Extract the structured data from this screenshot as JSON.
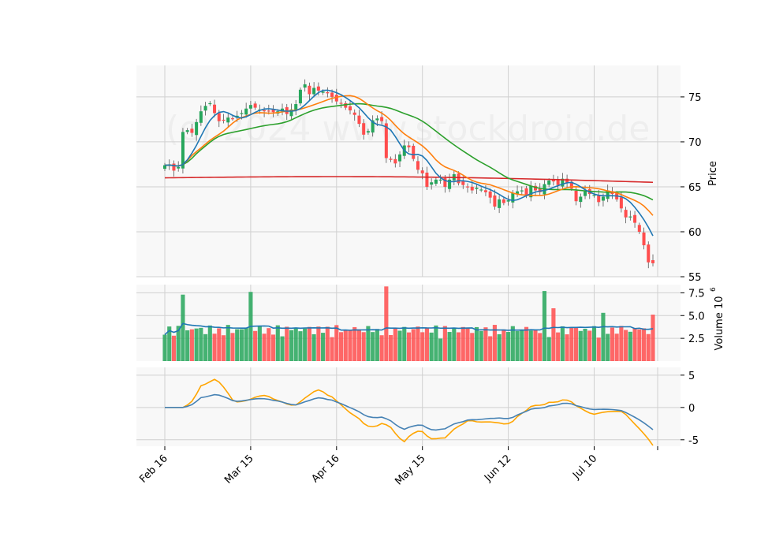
{
  "watermark": "(c) 2024 www.stockdroid.de",
  "colors": {
    "up": "#26a65b",
    "down": "#ff4d4d",
    "sma_short": "#1f77b4",
    "sma_mid": "#ff7f0e",
    "sma_long": "#2ca02c",
    "sma_200": "#d62728",
    "vol_ma": "#1f77b4",
    "osc_a": "#4682b4",
    "osc_b": "#ffa500",
    "panel_bg": "#f8f8f8",
    "grid": "#d0d0d0"
  },
  "chart_data": [
    {
      "type": "candlestick",
      "ylabel": "Price",
      "ylim": [
        55,
        78.5
      ],
      "yticks": [
        55,
        60,
        65,
        70,
        75
      ],
      "x_tick_labels": [
        "Feb 16",
        "Mar 15",
        "Apr 16",
        "May 15",
        "Jun 12",
        "Jul 10"
      ],
      "x_tick_index": [
        0,
        19,
        38,
        57,
        76,
        95
      ],
      "close": [
        67.4,
        67.5,
        66.8,
        67.2,
        71.1,
        71.3,
        71.0,
        72.2,
        73.4,
        74.0,
        74.3,
        73.2,
        72.3,
        72.4,
        72.7,
        72.6,
        72.9,
        73.2,
        73.7,
        74.1,
        73.8,
        73.6,
        73.4,
        73.4,
        73.3,
        73.4,
        73.7,
        73.1,
        73.6,
        74.2,
        75.8,
        76.4,
        75.3,
        76.0,
        75.7,
        75.6,
        75.4,
        75.0,
        74.5,
        74.3,
        73.8,
        73.5,
        73.0,
        72.0,
        70.8,
        71.2,
        72.4,
        72.6,
        72.3,
        68.2,
        68.0,
        67.6,
        68.6,
        69.6,
        69.4,
        68.1,
        66.9,
        66.5,
        65.0,
        65.5,
        65.8,
        65.8,
        65.0,
        65.8,
        66.4,
        65.4,
        65.2,
        65.0,
        64.6,
        64.9,
        64.7,
        64.4,
        63.8,
        62.8,
        63.6,
        63.2,
        63.5,
        64.3,
        64.5,
        64.6,
        64.0,
        65.1,
        64.6,
        64.4,
        65.3,
        65.7,
        65.6,
        65.2,
        65.9,
        65.4,
        64.8,
        63.4,
        63.9,
        64.5,
        64.2,
        64.1,
        63.3,
        63.9,
        64.6,
        64.2,
        63.6,
        62.6,
        61.6,
        61.7,
        61.0,
        60.0,
        58.5,
        56.6,
        56.5
      ],
      "vol_labels": [
        "2.5",
        "5.0",
        "7.5"
      ],
      "vol_ylim": [
        0,
        8.4
      ],
      "vol_ylabel": "Volume  10",
      "vol_exp": "6",
      "osc_yticks": [
        "-5",
        "0",
        "5"
      ],
      "osc_ylim": [
        -6,
        6.2
      ]
    }
  ]
}
